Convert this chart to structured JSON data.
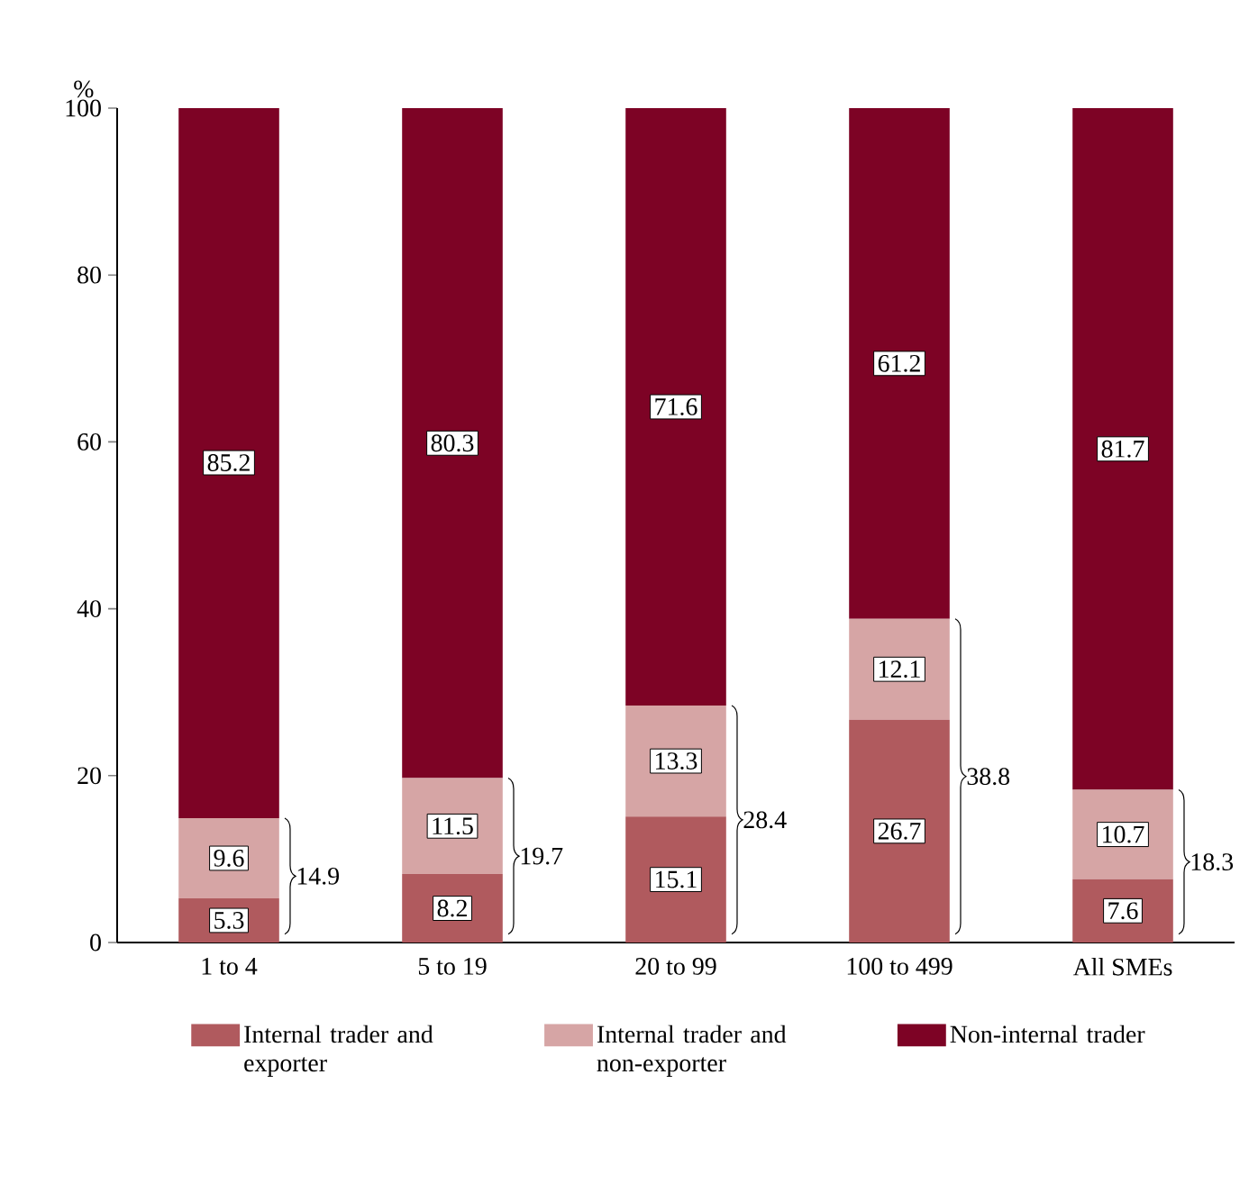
{
  "chart_data": {
    "type": "bar",
    "stacked": true,
    "ylabel": "%",
    "categories": [
      "1 to 4",
      "5 to 19",
      "20 to 99",
      "100 to 499",
      "All SMEs"
    ],
    "series": [
      {
        "name": "Internal trader and exporter",
        "color": "#b05a5e",
        "values": [
          5.3,
          8.2,
          15.1,
          26.7,
          7.6
        ]
      },
      {
        "name": "Internal trader and non-exporter",
        "color": "#d6a5a5",
        "values": [
          9.6,
          11.5,
          13.3,
          12.1,
          10.7
        ]
      },
      {
        "name": "Non-internal trader",
        "color": "#7d0325",
        "values": [
          85.2,
          80.3,
          71.6,
          61.2,
          81.7
        ]
      }
    ],
    "ylim": [
      0,
      100
    ],
    "yticks": [
      0,
      20,
      40,
      60,
      80,
      100
    ],
    "data_labels": true,
    "legend": "bottom",
    "annotations": [
      "14.9",
      "19.7",
      "28.4",
      "38.8",
      "18.3"
    ]
  }
}
